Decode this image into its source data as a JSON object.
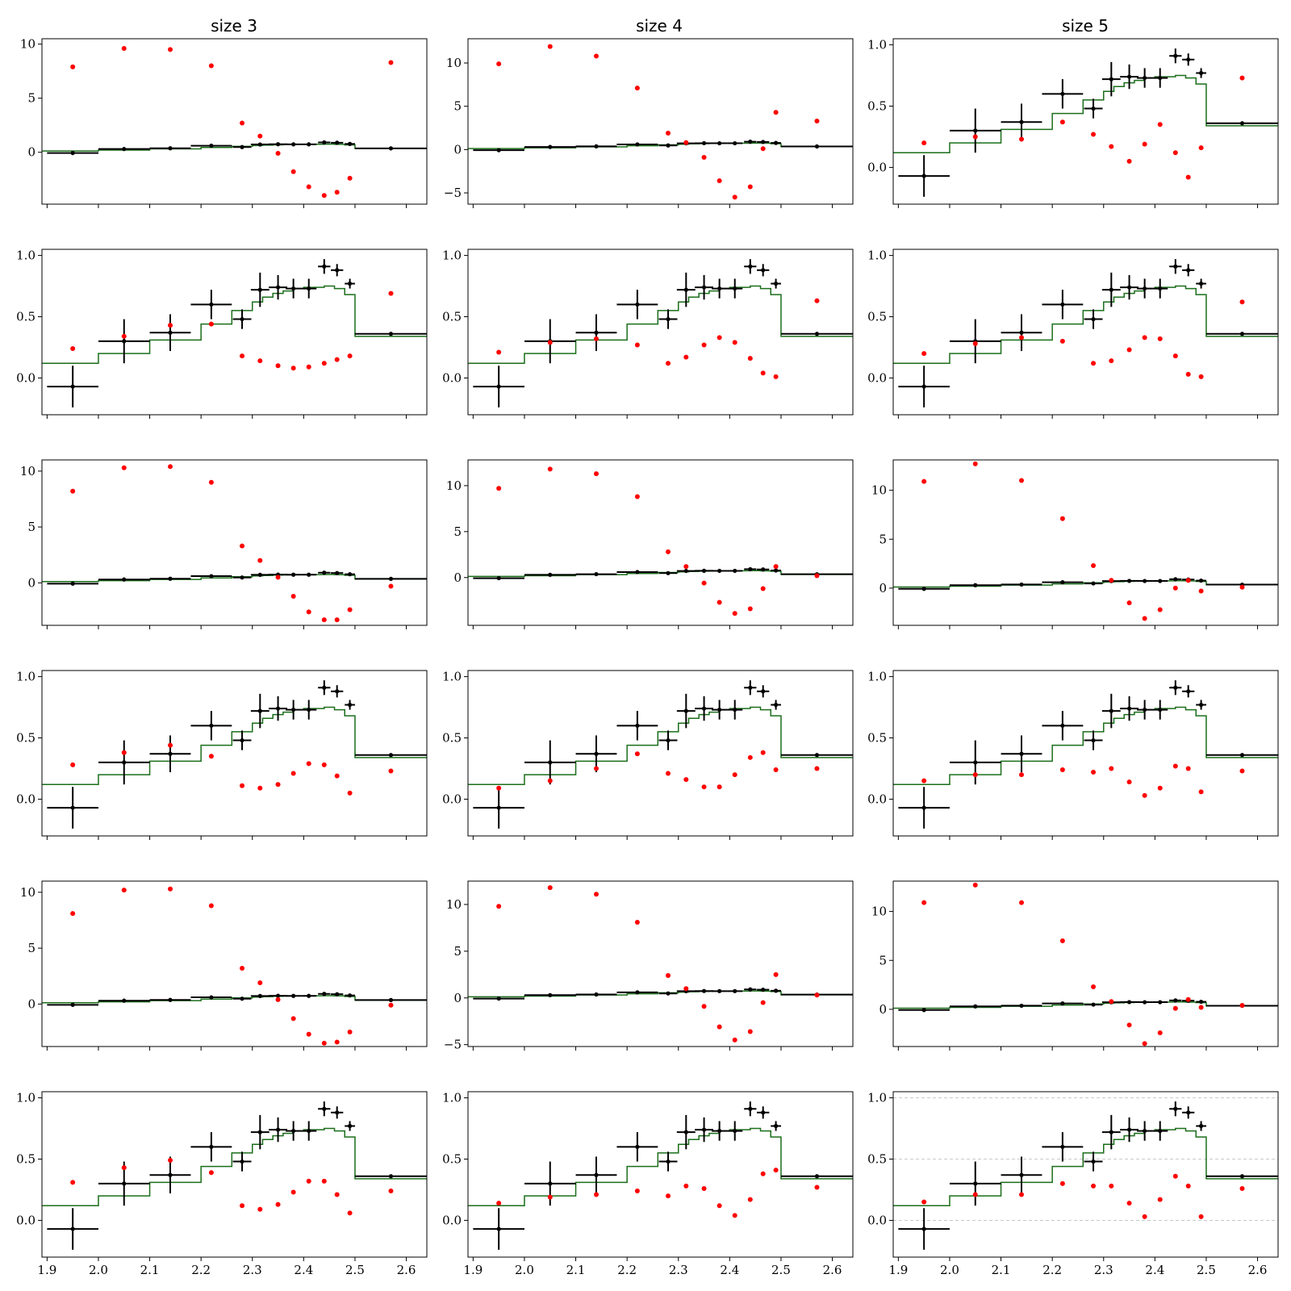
{
  "chart_data": {
    "type": "scatter",
    "layout": "6 rows x 3 columns grid of panels",
    "column_titles": [
      "size 3",
      "size 4",
      "size 5"
    ],
    "x_tick_labels": [
      "1.9",
      "2.0",
      "2.1",
      "2.2",
      "2.3",
      "2.4",
      "2.5",
      "2.6"
    ],
    "xlim": [
      1.89,
      2.64
    ],
    "colors": {
      "measured": "#000000",
      "model": "#1a6e1a",
      "red_points": "#ff0000",
      "grid": "#c8c8c8"
    },
    "measured": {
      "x": [
        1.95,
        2.05,
        2.14,
        2.22,
        2.28,
        2.315,
        2.35,
        2.38,
        2.41,
        2.44,
        2.465,
        2.49,
        2.57
      ],
      "xerr": [
        0.05,
        0.05,
        0.04,
        0.04,
        0.018,
        0.018,
        0.018,
        0.015,
        0.015,
        0.012,
        0.012,
        0.01,
        0.07
      ],
      "y": [
        -0.07,
        0.3,
        0.37,
        0.6,
        0.48,
        0.72,
        0.74,
        0.73,
        0.73,
        0.91,
        0.88,
        0.77,
        0.36
      ],
      "yerr": [
        0.17,
        0.18,
        0.15,
        0.12,
        0.08,
        0.14,
        0.1,
        0.08,
        0.08,
        0.06,
        0.05,
        0.04,
        0.01
      ]
    },
    "model_step": {
      "edges": [
        1.89,
        2.0,
        2.1,
        2.2,
        2.26,
        2.3,
        2.32,
        2.34,
        2.36,
        2.38,
        2.4,
        2.42,
        2.44,
        2.46,
        2.48,
        2.5,
        2.64
      ],
      "values": [
        0.12,
        0.2,
        0.31,
        0.44,
        0.55,
        0.62,
        0.66,
        0.69,
        0.71,
        0.73,
        0.74,
        0.74,
        0.75,
        0.73,
        0.68,
        0.34
      ]
    },
    "panels": [
      {
        "row": 1,
        "col": 1,
        "ylim": [
          -4.8,
          10.5
        ],
        "yticks": [
          0,
          5,
          10
        ],
        "yticklabels": [
          "0",
          "5",
          "10"
        ],
        "red_y": [
          7.9,
          9.6,
          9.5,
          8.0,
          2.7,
          1.5,
          -0.1,
          -1.8,
          -3.2,
          -4.0,
          -3.7,
          -2.4,
          8.3
        ]
      },
      {
        "row": 1,
        "col": 2,
        "ylim": [
          -6.3,
          12.8
        ],
        "yticks": [
          -5,
          0,
          5,
          10
        ],
        "yticklabels": [
          "−5",
          "0",
          "5",
          "10"
        ],
        "red_y": [
          9.9,
          11.9,
          10.8,
          7.1,
          1.9,
          0.8,
          -0.9,
          -3.6,
          -5.5,
          -4.3,
          0.1,
          4.3,
          3.3
        ]
      },
      {
        "row": 1,
        "col": 3,
        "ylim": [
          -0.3,
          1.05
        ],
        "yticks": [
          0.0,
          0.5,
          1.0
        ],
        "yticklabels": [
          "0.0",
          "0.5",
          "1.0"
        ],
        "red_y": [
          0.2,
          0.25,
          0.23,
          0.37,
          0.27,
          0.17,
          0.05,
          0.19,
          0.35,
          0.12,
          -0.08,
          0.16,
          0.73
        ]
      },
      {
        "row": 2,
        "col": 1,
        "ylim": [
          -0.3,
          1.05
        ],
        "yticks": [
          0.0,
          0.5,
          1.0
        ],
        "yticklabels": [
          "0.0",
          "0.5",
          "1.0"
        ],
        "red_y": [
          0.24,
          0.34,
          0.43,
          0.44,
          0.18,
          0.14,
          0.1,
          0.08,
          0.09,
          0.12,
          0.15,
          0.18,
          0.69
        ]
      },
      {
        "row": 2,
        "col": 2,
        "ylim": [
          -0.3,
          1.05
        ],
        "yticks": [
          0.0,
          0.5,
          1.0
        ],
        "yticklabels": [
          "0.0",
          "0.5",
          "1.0"
        ],
        "red_y": [
          0.21,
          0.29,
          0.32,
          0.27,
          0.12,
          0.17,
          0.27,
          0.33,
          0.29,
          0.16,
          0.04,
          0.01,
          0.63
        ]
      },
      {
        "row": 2,
        "col": 3,
        "ylim": [
          -0.3,
          1.05
        ],
        "yticks": [
          0.0,
          0.5,
          1.0
        ],
        "yticklabels": [
          "0.0",
          "0.5",
          "1.0"
        ],
        "red_y": [
          0.2,
          0.28,
          0.33,
          0.3,
          0.12,
          0.14,
          0.23,
          0.33,
          0.32,
          0.18,
          0.03,
          0.01,
          0.62
        ]
      },
      {
        "row": 3,
        "col": 1,
        "ylim": [
          -3.8,
          11.0
        ],
        "yticks": [
          0,
          5,
          10
        ],
        "yticklabels": [
          "0",
          "5",
          "10"
        ],
        "red_y": [
          8.2,
          10.3,
          10.4,
          9.0,
          3.3,
          2.0,
          0.5,
          -1.2,
          -2.6,
          -3.3,
          -3.3,
          -2.4,
          -0.3
        ]
      },
      {
        "row": 3,
        "col": 2,
        "ylim": [
          -5.2,
          12.8
        ],
        "yticks": [
          0,
          5,
          10
        ],
        "yticklabels": [
          "0",
          "5",
          "10"
        ],
        "red_y": [
          9.7,
          11.8,
          11.3,
          8.8,
          2.8,
          1.2,
          -0.6,
          -2.7,
          -3.9,
          -3.4,
          -1.2,
          1.2,
          0.2
        ]
      },
      {
        "row": 3,
        "col": 3,
        "ylim": [
          -3.8,
          13.1
        ],
        "yticks": [
          0,
          5,
          10
        ],
        "yticklabels": [
          "0",
          "5",
          "10"
        ],
        "red_y": [
          10.9,
          12.7,
          11.0,
          7.1,
          2.3,
          0.8,
          -1.5,
          -3.1,
          -2.2,
          0.0,
          0.8,
          -0.3,
          0.1
        ]
      },
      {
        "row": 4,
        "col": 1,
        "ylim": [
          -0.3,
          1.05
        ],
        "yticks": [
          0.0,
          0.5,
          1.0
        ],
        "yticklabels": [
          "0.0",
          "0.5",
          "1.0"
        ],
        "red_y": [
          0.28,
          0.38,
          0.44,
          0.35,
          0.11,
          0.09,
          0.12,
          0.21,
          0.29,
          0.28,
          0.19,
          0.05,
          0.23
        ]
      },
      {
        "row": 4,
        "col": 2,
        "ylim": [
          -0.3,
          1.05
        ],
        "yticks": [
          0.0,
          0.5,
          1.0
        ],
        "yticklabels": [
          "0.0",
          "0.5",
          "1.0"
        ],
        "red_y": [
          0.09,
          0.15,
          0.25,
          0.37,
          0.21,
          0.16,
          0.1,
          0.1,
          0.2,
          0.34,
          0.38,
          0.24,
          0.25
        ]
      },
      {
        "row": 4,
        "col": 3,
        "ylim": [
          -0.3,
          1.05
        ],
        "yticks": [
          0.0,
          0.5,
          1.0
        ],
        "yticklabels": [
          "0.0",
          "0.5",
          "1.0"
        ],
        "red_y": [
          0.15,
          0.2,
          0.2,
          0.24,
          0.22,
          0.25,
          0.14,
          0.03,
          0.09,
          0.27,
          0.25,
          0.06,
          0.23
        ]
      },
      {
        "row": 5,
        "col": 1,
        "ylim": [
          -3.8,
          11.0
        ],
        "yticks": [
          0,
          5,
          10
        ],
        "yticklabels": [
          "0",
          "5",
          "10"
        ],
        "red_y": [
          8.1,
          10.2,
          10.3,
          8.8,
          3.2,
          1.9,
          0.4,
          -1.3,
          -2.7,
          -3.5,
          -3.4,
          -2.5,
          -0.1
        ]
      },
      {
        "row": 5,
        "col": 2,
        "ylim": [
          -5.2,
          12.5
        ],
        "yticks": [
          -5,
          0,
          5,
          10
        ],
        "yticklabels": [
          "−5",
          "0",
          "5",
          "10"
        ],
        "red_y": [
          9.8,
          11.8,
          11.1,
          8.1,
          2.4,
          1.0,
          -0.9,
          -3.1,
          -4.5,
          -3.6,
          -0.5,
          2.5,
          0.3
        ]
      },
      {
        "row": 5,
        "col": 3,
        "ylim": [
          -3.8,
          13.1
        ],
        "yticks": [
          0,
          5,
          10
        ],
        "yticklabels": [
          "0",
          "5",
          "10"
        ],
        "red_y": [
          10.9,
          12.7,
          10.9,
          7.0,
          2.3,
          0.8,
          -1.6,
          -3.5,
          -2.4,
          0.1,
          1.0,
          0.2,
          0.4
        ]
      },
      {
        "row": 6,
        "col": 1,
        "ylim": [
          -0.3,
          1.05
        ],
        "yticks": [
          0.0,
          0.5,
          1.0
        ],
        "yticklabels": [
          "0.0",
          "0.5",
          "1.0"
        ],
        "red_y": [
          0.31,
          0.43,
          0.49,
          0.39,
          0.12,
          0.09,
          0.13,
          0.23,
          0.32,
          0.32,
          0.21,
          0.06,
          0.24
        ]
      },
      {
        "row": 6,
        "col": 2,
        "ylim": [
          -0.3,
          1.05
        ],
        "yticks": [
          0.0,
          0.5,
          1.0
        ],
        "yticklabels": [
          "0.0",
          "0.5",
          "1.0"
        ],
        "red_y": [
          0.14,
          0.19,
          0.21,
          0.24,
          0.2,
          0.28,
          0.26,
          0.12,
          0.04,
          0.17,
          0.38,
          0.41,
          0.27
        ]
      },
      {
        "row": 6,
        "col": 3,
        "ylim": [
          -0.3,
          1.05
        ],
        "yticks": [
          0.0,
          0.5,
          1.0
        ],
        "yticklabels": [
          "0.0",
          "0.5",
          "1.0"
        ],
        "grid": true,
        "red_y": [
          0.15,
          0.21,
          0.21,
          0.3,
          0.28,
          0.28,
          0.14,
          0.03,
          0.17,
          0.36,
          0.28,
          0.03,
          0.26
        ]
      }
    ]
  }
}
